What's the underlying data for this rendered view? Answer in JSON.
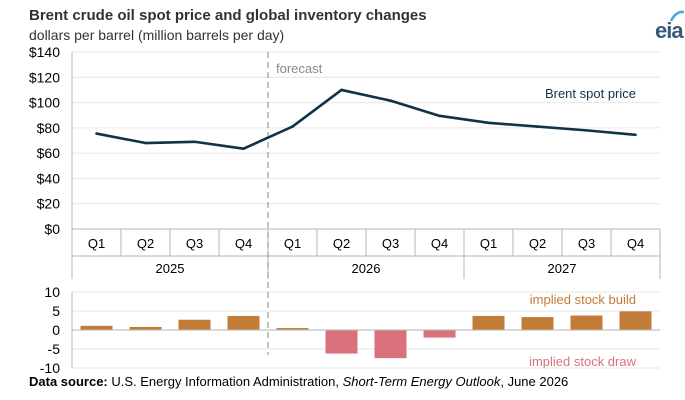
{
  "header": {
    "title": "Brent crude oil spot price and global inventory changes",
    "subtitle": "dollars per barrel (million barrels per day)",
    "logo_text": "eia"
  },
  "source": {
    "label": "Data source:",
    "text_before": " U.S. Energy Information Administration, ",
    "italic": "Short-Term Energy Outlook",
    "text_after": ", June 2026"
  },
  "colors": {
    "price_line": "#0f3349",
    "build_bar": "#c27c37",
    "draw_bar": "#d9727c",
    "forecast_line": "#9a9a9a",
    "axis": "#b5b5b5",
    "grid": "#e6e6e6"
  },
  "chart_data": [
    {
      "type": "line",
      "title": "",
      "forecast_label": "forecast",
      "forecast_starts_after": "2025 Q4",
      "categories": [
        "Q1",
        "Q2",
        "Q3",
        "Q4",
        "Q1",
        "Q2",
        "Q3",
        "Q4",
        "Q1",
        "Q2",
        "Q3",
        "Q4"
      ],
      "years": [
        {
          "label": "2025",
          "quarters": 4
        },
        {
          "label": "2026",
          "quarters": 4
        },
        {
          "label": "2027",
          "quarters": 4
        }
      ],
      "series": [
        {
          "name": "Brent spot price",
          "values": [
            75.5,
            68,
            69,
            63.5,
            81,
            110,
            101.5,
            89.5,
            84,
            81,
            78,
            74.5
          ]
        }
      ],
      "ylim": [
        0,
        140
      ],
      "yticks": [
        0,
        20,
        40,
        60,
        80,
        100,
        120,
        140
      ],
      "ytick_labels": [
        "$0",
        "$20",
        "$40",
        "$60",
        "$80",
        "$100",
        "$120",
        "$140"
      ]
    },
    {
      "type": "bar",
      "categories": [
        "Q1",
        "Q2",
        "Q3",
        "Q4",
        "Q1",
        "Q2",
        "Q3",
        "Q4",
        "Q1",
        "Q2",
        "Q3",
        "Q4"
      ],
      "series": [
        {
          "name": "implied stock build / implied stock draw",
          "values": [
            1.1,
            0.8,
            2.7,
            3.7,
            0.5,
            -6.2,
            -7.4,
            -2.0,
            3.7,
            3.4,
            3.8,
            4.9
          ]
        }
      ],
      "labels": {
        "positive": "implied stock build",
        "negative": "implied stock draw"
      },
      "ylim": [
        -10,
        10
      ],
      "yticks": [
        -10,
        -5,
        0,
        5,
        10
      ],
      "ytick_labels": [
        "-10",
        "-5",
        "0",
        "5",
        "10"
      ]
    }
  ]
}
